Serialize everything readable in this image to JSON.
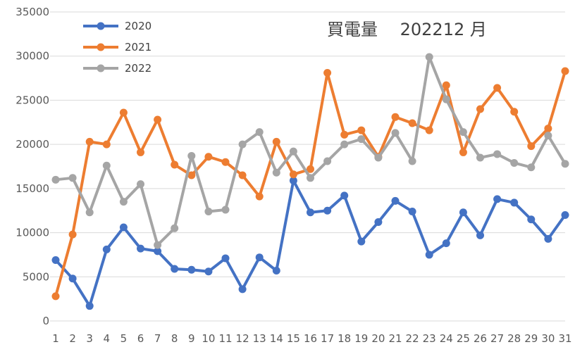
{
  "chart_data": {
    "type": "line",
    "title": "買電量　 202212 月",
    "xlabel": "",
    "ylabel": "",
    "ylim": [
      0,
      35000
    ],
    "yticks": [
      0,
      5000,
      10000,
      15000,
      20000,
      25000,
      30000,
      35000
    ],
    "x": [
      1,
      2,
      3,
      4,
      5,
      6,
      7,
      8,
      9,
      10,
      11,
      12,
      13,
      14,
      15,
      16,
      17,
      18,
      19,
      20,
      21,
      22,
      23,
      24,
      25,
      26,
      27,
      28,
      29,
      30,
      31
    ],
    "grid": true,
    "legend_position": "top-left",
    "series": [
      {
        "name": "2020",
        "color": "#4472c4",
        "values": [
          6900,
          4800,
          1700,
          8100,
          10600,
          8200,
          7900,
          5900,
          5800,
          5600,
          7100,
          3600,
          7200,
          5700,
          15900,
          12300,
          12500,
          14200,
          9000,
          11200,
          13600,
          12400,
          7500,
          8800,
          12300,
          9700,
          13800,
          13400,
          11500,
          9300,
          12000
        ]
      },
      {
        "name": "2021",
        "color": "#ed7d31",
        "values": [
          2800,
          9800,
          20300,
          20000,
          23600,
          19100,
          22800,
          17700,
          16500,
          18600,
          18000,
          16500,
          14100,
          20300,
          16600,
          17200,
          28100,
          21100,
          21600,
          18600,
          23100,
          22400,
          21600,
          26700,
          19100,
          24000,
          26400,
          23700,
          19800,
          21800,
          28300
        ]
      },
      {
        "name": "2022",
        "color": "#a5a5a5",
        "values": [
          16000,
          16200,
          12300,
          17600,
          13500,
          15500,
          8600,
          10500,
          18700,
          12400,
          12600,
          20000,
          21400,
          16800,
          19200,
          16200,
          18100,
          20000,
          20600,
          18500,
          21300,
          18100,
          29900,
          25100,
          21400,
          18500,
          18900,
          17900,
          17400,
          21000,
          17800
        ]
      }
    ]
  }
}
